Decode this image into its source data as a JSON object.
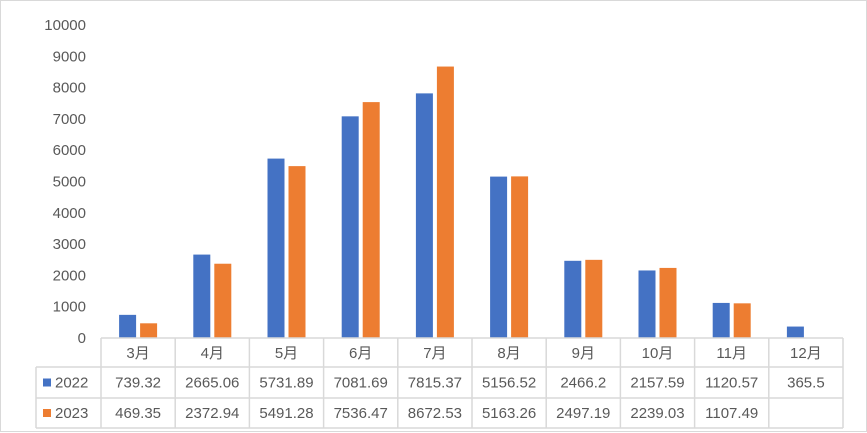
{
  "chart_data": {
    "type": "bar",
    "title": "",
    "xlabel": "",
    "ylabel": "",
    "ylim": [
      0,
      10000
    ],
    "yticks": [
      0,
      1000,
      2000,
      3000,
      4000,
      5000,
      6000,
      7000,
      8000,
      9000,
      10000
    ],
    "grid": false,
    "legend": "data-table",
    "categories": [
      "3月",
      "4月",
      "5月",
      "6月",
      "7月",
      "8月",
      "9月",
      "10月",
      "11月",
      "12月"
    ],
    "series": [
      {
        "name": "2022",
        "color": "#4472c4",
        "values": [
          739.32,
          2665.06,
          5731.89,
          7081.69,
          7815.37,
          5156.52,
          2466.2,
          2157.59,
          1120.57,
          365.5
        ]
      },
      {
        "name": "2023",
        "color": "#ed7d31",
        "values": [
          469.35,
          2372.94,
          5491.28,
          7536.47,
          8672.53,
          5163.26,
          2497.19,
          2239.03,
          1107.49,
          null
        ]
      }
    ]
  }
}
